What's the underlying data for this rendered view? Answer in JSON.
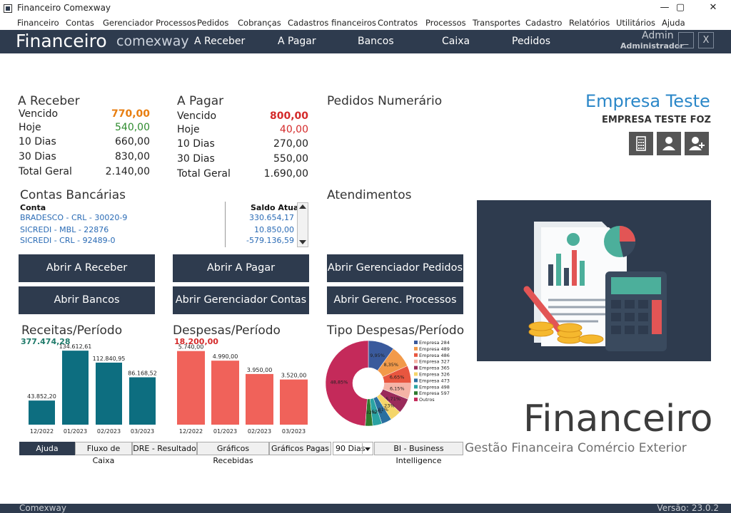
{
  "window": {
    "title": "Financeiro Comexway",
    "minimize": "—",
    "maximize": "▢",
    "close": "✕"
  },
  "menu": [
    "Financeiro",
    "Contas",
    "Gerenciador Processos",
    "Pedidos",
    "Cobranças",
    "Cadastros financeiros",
    "Contratos",
    "Processos",
    "Transportes",
    "Cadastro",
    "Relatórios",
    "Utilitários",
    "Ajuda"
  ],
  "nav": {
    "brand": "Financeiro",
    "brand_sub": "comexway",
    "items": [
      "A Receber",
      "A Pagar",
      "Bancos",
      "Caixa",
      "Pedidos"
    ],
    "user": "Admin",
    "role": "Administrador",
    "min_label": "_",
    "close_label": "X"
  },
  "receber": {
    "title": "A Receber",
    "rows": [
      {
        "label": "Vencido",
        "value": "770,00",
        "color": "#e87e10"
      },
      {
        "label": "Hoje",
        "value": "540,00",
        "color": "#2e8b2e"
      },
      {
        "label": "10 Dias",
        "value": "660,00",
        "color": "#222"
      },
      {
        "label": "30 Dias",
        "value": "830,00",
        "color": "#222"
      },
      {
        "label": "Total Geral",
        "value": "2.140,00",
        "color": "#222"
      }
    ]
  },
  "pagar": {
    "title": "A Pagar",
    "rows": [
      {
        "label": "Vencido",
        "value": "800,00",
        "color": "#d42a2a"
      },
      {
        "label": "Hoje",
        "value": "40,00",
        "color": "#d42a2a"
      },
      {
        "label": "10 Dias",
        "value": "270,00",
        "color": "#222"
      },
      {
        "label": "30 Dias",
        "value": "550,00",
        "color": "#222"
      },
      {
        "label": "Total Geral",
        "value": "1.690,00",
        "color": "#222"
      }
    ]
  },
  "pedidos_title": "Pedidos Numerário",
  "atendimentos_title": "Atendimentos",
  "empresa": {
    "name": "Empresa Teste",
    "sub": "EMPRESA TESTE FOZ",
    "icons": [
      "calculator-icon",
      "user-icon",
      "user-add-icon"
    ]
  },
  "contas": {
    "title": "Contas Bancárias",
    "col_conta": "Conta",
    "col_saldo": "Saldo Atual",
    "rows": [
      {
        "conta": "BRADESCO - CRL - 30020-9",
        "saldo": "330.654,17"
      },
      {
        "conta": "SICREDI - MBL - 22876",
        "saldo": "10.850,00"
      },
      {
        "conta": "SICREDI - CRL - 92489-0",
        "saldo": "-579.136,59"
      }
    ]
  },
  "buttons": [
    "Abrir A Receber",
    "Abrir A Pagar",
    "Abrir Gerenciador Pedidos",
    "Abrir Bancos",
    "Abrir Gerenciador Contas",
    "Abrir Gerenc. Processos"
  ],
  "chart_data": [
    {
      "type": "bar",
      "title": "Receitas/Período",
      "total": "377.474,28",
      "total_color": "#1f7a6a",
      "color": "#0d6e80",
      "categories": [
        "12/2022",
        "01/2023",
        "02/2023",
        "03/2023"
      ],
      "values": [
        43852.2,
        134612.61,
        112840.95,
        86168.52
      ],
      "labels": [
        "43.852,20",
        "134.612,61",
        "112.840,95",
        "86.168,52"
      ],
      "ylim": [
        0,
        140000
      ]
    },
    {
      "type": "bar",
      "title": "Despesas/Período",
      "total": "18.200,00",
      "total_color": "#d42a2a",
      "color": "#f0625a",
      "categories": [
        "12/2022",
        "01/2023",
        "02/2023",
        "03/2023"
      ],
      "values": [
        5740,
        4990,
        3950,
        3520
      ],
      "labels": [
        "5.740,00",
        "4.990,00",
        "3.950,00",
        "3.520,00"
      ],
      "ylim": [
        0,
        6000
      ]
    },
    {
      "type": "pie",
      "title": "Tipo Despesas/Período",
      "slices": [
        {
          "name": "Empresa 284",
          "value": 9.95,
          "label": "9,95%",
          "color": "#3a5a9c"
        },
        {
          "name": "Empresa 489",
          "value": 8.35,
          "label": "8,35%",
          "color": "#f29a4a"
        },
        {
          "name": "Empresa 486",
          "value": 6.65,
          "label": "6,65%",
          "color": "#e8563f"
        },
        {
          "name": "Empresa 327",
          "value": 6.15,
          "label": "6,15%",
          "color": "#f5b3a6"
        },
        {
          "name": "Empresa 365",
          "value": 5.71,
          "label": "5,71%",
          "color": "#9a2a5a"
        },
        {
          "name": "Empresa 326",
          "value": 4.23,
          "label": "4,23%",
          "color": "#f4d56a"
        },
        {
          "name": "Empresa 473",
          "value": 3.81,
          "label": "3,81%",
          "color": "#2a6fa0"
        },
        {
          "name": "Empresa 498",
          "value": 3.52,
          "label": "3,52%",
          "color": "#2aa3a3"
        },
        {
          "name": "Empresa 597",
          "value": 2.82,
          "label": "2,82%",
          "color": "#2e7a2e"
        },
        {
          "name": "Outros",
          "value": 48.85,
          "label": "48,85%",
          "color": "#c42a5a"
        }
      ]
    }
  ],
  "bottom_tabs": {
    "ajuda": "Ajuda",
    "fluxo": "Fluxo de Caixa",
    "dre": "DRE - Resultado",
    "rec": "Gráficos Recebidas",
    "pag": "Gráficos Pagas",
    "dias": "90 Dias",
    "bi": "BI - Business Intelligence"
  },
  "logo": {
    "title": "Financeiro",
    "subtitle": "Gestão Financeira Comércio Exterior"
  },
  "footer": {
    "left": "Comexway",
    "right": "Versão: 23.0.2"
  },
  "colors": {
    "navy": "#2e3b4e",
    "accent_blue": "#2b87c8"
  }
}
